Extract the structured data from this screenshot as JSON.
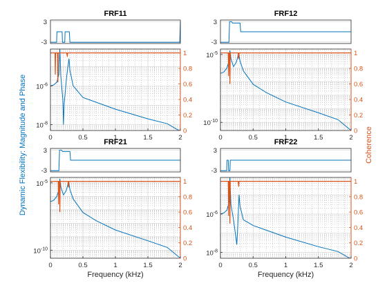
{
  "figure": {
    "shared_ylabel": "Dynamic Flexibility: Magnitude and Phase",
    "shared_ylabel_right": "Coherence",
    "colors": {
      "magnitude": "#0072BD",
      "coherence": "#D95319",
      "axes": "#262626",
      "grid": "#d3d3d3",
      "background": "#ffffff"
    }
  },
  "chart_data": [
    {
      "type": "line",
      "title": "FRF11",
      "xlabel": "",
      "xlim": [
        0,
        2
      ],
      "x_ticks": [
        "0",
        "0.5",
        "1",
        "1.5",
        "2"
      ],
      "phase": {
        "ylim": [
          -3.5,
          3.5
        ],
        "y_ticks": [
          "3",
          "-3"
        ],
        "x": [
          0,
          0.095,
          0.1,
          0.18,
          0.185,
          0.22,
          0.225,
          0.29,
          0.3,
          1.0,
          1.99,
          2.0
        ],
        "y": [
          -3.14,
          -3.14,
          0,
          0,
          -3.14,
          -3.14,
          0,
          0,
          -3.14,
          -3.14,
          -3.14,
          3.0
        ]
      },
      "magnitude": {
        "yscale": "log",
        "ylim_log10": [
          -8.3,
          -4.1
        ],
        "y_ticks": [
          "10^-6",
          "10^-8"
        ],
        "x": [
          0,
          0.05,
          0.1,
          0.13,
          0.145,
          0.16,
          0.19,
          0.2,
          0.21,
          0.25,
          0.285,
          0.3,
          0.35,
          0.5,
          1.0,
          1.5,
          1.8,
          1.95,
          2.0
        ],
        "log10": [
          -6.0,
          -5.95,
          -5.8,
          -5.4,
          -4.1,
          -5.5,
          -6.7,
          -8.0,
          -7.0,
          -5.5,
          -4.6,
          -5.2,
          -6.0,
          -6.6,
          -7.2,
          -7.7,
          -7.95,
          -8.25,
          -8.3
        ]
      },
      "coherence": {
        "ylim": [
          0,
          1.05
        ],
        "y_ticks": [
          "0",
          "0.2",
          "0.4",
          "0.6",
          "0.8",
          "1"
        ],
        "x": [
          0,
          0.07,
          0.075,
          0.08,
          0.1,
          0.11,
          0.115,
          0.12,
          0.14,
          0.25,
          0.26,
          0.265,
          0.3,
          1.0,
          2.0
        ],
        "y": [
          1,
          1,
          0.72,
          1,
          1,
          1,
          0.62,
          1,
          1,
          1,
          0.95,
          1,
          1,
          1,
          1
        ]
      }
    },
    {
      "type": "line",
      "title": "FRF12",
      "xlabel": "",
      "xlim": [
        0,
        2
      ],
      "x_ticks": [
        "0",
        "0.5",
        "1",
        "1.5",
        "2"
      ],
      "phase": {
        "ylim": [
          -3.5,
          3.5
        ],
        "y_ticks": [
          "3",
          "-3"
        ],
        "x": [
          0,
          0.13,
          0.14,
          0.17,
          0.185,
          0.3,
          0.31,
          2.0
        ],
        "y": [
          -3.14,
          -3.14,
          3.0,
          3.0,
          2.6,
          2.6,
          0,
          0
        ]
      },
      "magnitude": {
        "yscale": "log",
        "ylim_log10": [
          -10.6,
          -4.6
        ],
        "y_ticks": [
          "10^-5",
          "10^-10"
        ],
        "x": [
          0,
          0.05,
          0.1,
          0.13,
          0.145,
          0.16,
          0.2,
          0.24,
          0.28,
          0.3,
          0.35,
          0.5,
          0.7,
          1.0,
          1.5,
          1.8,
          1.95,
          2.0
        ],
        "log10": [
          -6.4,
          -6.3,
          -6.0,
          -5.5,
          -4.7,
          -5.3,
          -5.9,
          -5.6,
          -4.95,
          -5.5,
          -6.2,
          -7.2,
          -7.8,
          -8.5,
          -9.3,
          -9.8,
          -10.4,
          -10.6
        ]
      },
      "coherence": {
        "ylim": [
          0,
          1.05
        ],
        "y_ticks": [
          "0",
          "0.2",
          "0.4",
          "0.6",
          "0.8",
          "1"
        ],
        "x": [
          0,
          0.12,
          0.125,
          0.13,
          0.14,
          0.145,
          0.15,
          0.27,
          0.28,
          0.285,
          0.3,
          2.0
        ],
        "y": [
          1,
          1,
          0.7,
          1,
          1,
          0.6,
          1,
          1,
          0.92,
          1,
          1,
          1
        ]
      }
    },
    {
      "type": "line",
      "title": "FRF21",
      "xlabel": "Frequency (kHz)",
      "xlim": [
        0,
        2
      ],
      "x_ticks": [
        "0",
        "0.5",
        "1",
        "1.5",
        "2"
      ],
      "phase": {
        "ylim": [
          -3.5,
          3.5
        ],
        "y_ticks": [
          "3",
          "-3"
        ],
        "x": [
          0,
          0.13,
          0.14,
          0.17,
          0.185,
          0.3,
          0.31,
          2.0
        ],
        "y": [
          -3.14,
          -3.14,
          3.0,
          3.0,
          2.6,
          2.6,
          0,
          0
        ]
      },
      "magnitude": {
        "yscale": "log",
        "ylim_log10": [
          -10.6,
          -4.6
        ],
        "y_ticks": [
          "10^-5",
          "10^-10"
        ],
        "x": [
          0,
          0.05,
          0.1,
          0.13,
          0.145,
          0.16,
          0.2,
          0.24,
          0.28,
          0.3,
          0.35,
          0.5,
          0.7,
          1.0,
          1.5,
          1.8,
          1.95,
          2.0
        ],
        "log10": [
          -6.4,
          -6.3,
          -6.0,
          -5.5,
          -4.7,
          -5.3,
          -5.9,
          -5.6,
          -4.95,
          -5.5,
          -6.2,
          -7.2,
          -7.8,
          -8.5,
          -9.3,
          -9.8,
          -10.4,
          -10.6
        ]
      },
      "coherence": {
        "ylim": [
          0,
          1.05
        ],
        "y_ticks": [
          "0",
          "0.2",
          "0.4",
          "0.6",
          "0.8",
          "1"
        ],
        "x": [
          0,
          0.12,
          0.125,
          0.13,
          0.14,
          0.145,
          0.15,
          0.27,
          0.28,
          0.285,
          0.3,
          2.0
        ],
        "y": [
          1,
          1,
          0.7,
          1,
          1,
          0.6,
          1,
          1,
          0.92,
          1,
          1,
          1
        ]
      }
    },
    {
      "type": "line",
      "title": "FRF22",
      "xlabel": "Frequency (kHz)",
      "xlim": [
        0,
        2
      ],
      "x_ticks": [
        "0",
        "0.5",
        "1",
        "1.5",
        "2"
      ],
      "phase": {
        "ylim": [
          -3.5,
          3.5
        ],
        "y_ticks": [
          "3",
          "-3"
        ],
        "x": [
          0,
          0.095,
          0.1,
          0.12,
          0.125,
          0.145,
          0.15,
          2.0
        ],
        "y": [
          -3.14,
          -3.14,
          0,
          0,
          -3.14,
          -3.14,
          0,
          0
        ]
      },
      "magnitude": {
        "yscale": "log",
        "ylim_log10": [
          -8.3,
          -4.1
        ],
        "y_ticks": [
          "10^-6",
          "10^-8"
        ],
        "x": [
          0,
          0.05,
          0.1,
          0.13,
          0.145,
          0.16,
          0.2,
          0.24,
          0.25,
          0.26,
          0.285,
          0.3,
          0.35,
          0.5,
          1.0,
          1.5,
          1.8,
          1.95,
          2.0
        ],
        "log10": [
          -6.0,
          -5.95,
          -5.8,
          -5.4,
          -4.1,
          -5.5,
          -6.3,
          -7.3,
          -7.6,
          -7.0,
          -5.0,
          -5.6,
          -6.3,
          -6.6,
          -7.2,
          -7.7,
          -7.95,
          -8.25,
          -8.3
        ]
      },
      "coherence": {
        "ylim": [
          0,
          1.05
        ],
        "y_ticks": [
          "0",
          "0.2",
          "0.4",
          "0.6",
          "0.8",
          "1"
        ],
        "x": [
          0,
          0.12,
          0.125,
          0.13,
          0.14,
          0.145,
          0.15,
          0.27,
          0.28,
          0.285,
          0.3,
          2.0
        ],
        "y": [
          1,
          1,
          0.55,
          1,
          1,
          0.45,
          1,
          1,
          0.93,
          1,
          1,
          1
        ]
      }
    }
  ]
}
